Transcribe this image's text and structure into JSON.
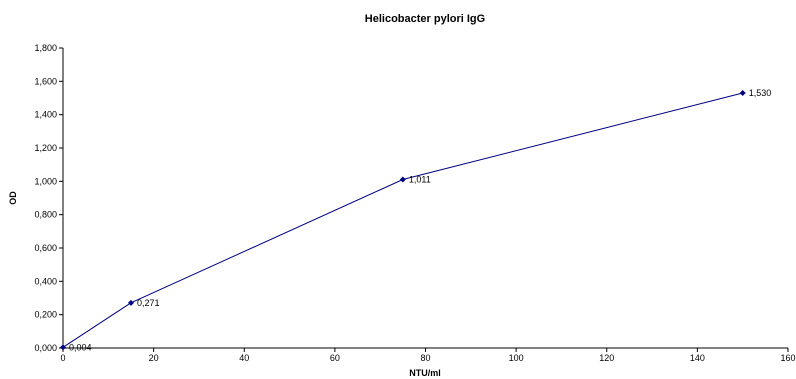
{
  "chart_data": {
    "type": "line",
    "title": "Helicobacter pylori IgG",
    "xlabel": "NTU/ml",
    "ylabel": "OD",
    "xlim": [
      0,
      160
    ],
    "ylim": [
      0,
      1.8
    ],
    "x_ticks": [
      "0",
      "20",
      "40",
      "60",
      "80",
      "100",
      "120",
      "140",
      "160"
    ],
    "y_ticks": [
      "0,000",
      "0,200",
      "0,400",
      "0,600",
      "0,800",
      "1,000",
      "1,200",
      "1,400",
      "1,600",
      "1,800"
    ],
    "grid": false,
    "legend": "none",
    "series": [
      {
        "x": [
          0,
          15,
          75,
          150
        ],
        "y": [
          0.004,
          0.271,
          1.011,
          1.53
        ],
        "labels": [
          "0,004",
          "0,271",
          "1,011",
          "1,530"
        ],
        "color": "#000080"
      }
    ]
  }
}
